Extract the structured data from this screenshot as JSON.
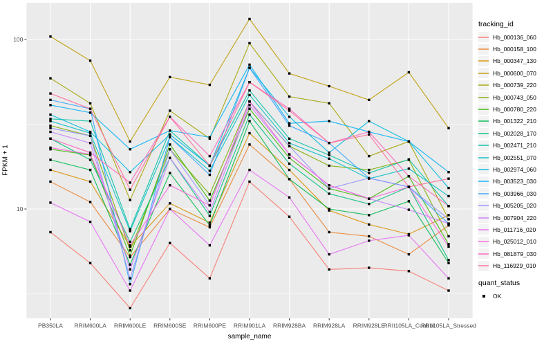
{
  "chart_data": {
    "type": "line",
    "title": "",
    "xlabel": "sample_name",
    "ylabel": "FPKM + 1",
    "y_scale": "log10",
    "y_ticks": [
      10,
      100
    ],
    "y_minor_gridlines": [
      3.162,
      31.623
    ],
    "ylim": [
      2.2,
      165
    ],
    "grid": "white-on-gray-panel",
    "legend_position": "right",
    "legend_title": "tracking_id",
    "point_marker": {
      "shape": "square",
      "color": "#000000",
      "meaning": "quant_status OK"
    },
    "quant_status": {
      "title": "quant_status",
      "items": [
        {
          "label": "OK",
          "marker": "black-square"
        }
      ]
    },
    "categories": [
      "PB350LA",
      "RRIM600LA",
      "RRIM600LE",
      "RRIM600SE",
      "RRIM600PE",
      "RRIM901LA",
      "RRIM928BA",
      "RRIM928LA",
      "RRIM928LE",
      "RRII105LA_Control",
      "RRII105LA_Stressed"
    ],
    "series": [
      {
        "name": "Hb_000136_060",
        "color": "#F8766D",
        "values": [
          7.3,
          4.8,
          2.6,
          6.3,
          3.9,
          14.5,
          9.0,
          4.4,
          4.5,
          4.3,
          3.3
        ]
      },
      {
        "name": "Hb_000158_100",
        "color": "#EA8331",
        "values": [
          14.5,
          11.0,
          5.2,
          10.0,
          7.8,
          24.0,
          15.0,
          7.3,
          6.9,
          5.4,
          8.0
        ]
      },
      {
        "name": "Hb_000347_130",
        "color": "#D89000",
        "values": [
          17.0,
          14.5,
          6.0,
          10.8,
          8.3,
          28.0,
          17.0,
          9.8,
          8.1,
          7.1,
          9.2
        ]
      },
      {
        "name": "Hb_000600_070",
        "color": "#C09B00",
        "values": [
          104,
          75,
          25,
          60,
          54,
          132,
          63,
          53,
          44,
          64,
          30
        ]
      },
      {
        "name": "Hb_000739_220",
        "color": "#A3A500",
        "values": [
          59,
          42,
          11.3,
          38,
          26,
          95,
          46,
          42,
          20.5,
          25,
          8.7
        ]
      },
      {
        "name": "Hb_000743_050",
        "color": "#7CAE00",
        "values": [
          31,
          27,
          5.7,
          22.5,
          12.2,
          43,
          23.5,
          18,
          17,
          19.5,
          6.9
        ]
      },
      {
        "name": "Hb_000780_220",
        "color": "#39B600",
        "values": [
          22.5,
          20.8,
          5.3,
          24,
          11.2,
          39,
          20,
          13.2,
          11.5,
          15.6,
          6.2
        ]
      },
      {
        "name": "Hb_001322_210",
        "color": "#00BB4E",
        "values": [
          19.5,
          17.0,
          4.7,
          16.3,
          8.0,
          33,
          15.0,
          10.0,
          9.2,
          11.1,
          4.8
        ]
      },
      {
        "name": "Hb_002028_170",
        "color": "#00BF7D",
        "values": [
          26,
          19.5,
          6.4,
          20,
          9.1,
          36,
          18.5,
          12.3,
          10.7,
          13.5,
          5.0
        ]
      },
      {
        "name": "Hb_002471_210",
        "color": "#00C1A3",
        "values": [
          34,
          33,
          7.6,
          29,
          18,
          50,
          26,
          20.8,
          16.3,
          19.6,
          10.4
        ]
      },
      {
        "name": "Hb_002551_070",
        "color": "#00BFC4",
        "values": [
          33,
          28,
          7.4,
          26.5,
          16.8,
          47,
          24.5,
          19.8,
          15.1,
          17.3,
          11.9
        ]
      },
      {
        "name": "Hb_002974_060",
        "color": "#00BAE0",
        "values": [
          36,
          28.5,
          16.5,
          27.5,
          18,
          68,
          35,
          21.5,
          33,
          25,
          13.3
        ]
      },
      {
        "name": "Hb_003523_030",
        "color": "#00B0F6",
        "values": [
          41,
          37,
          22.5,
          29,
          26.5,
          71,
          32,
          33,
          28.5,
          25,
          16.5
        ]
      },
      {
        "name": "Hb_003966_030",
        "color": "#35A2FF",
        "values": [
          44,
          39,
          3.6,
          26.5,
          15.9,
          68,
          31,
          24.5,
          15.2,
          13.5,
          8.2
        ]
      },
      {
        "name": "Hb_005205_020",
        "color": "#9590FF",
        "values": [
          30,
          27,
          3.9,
          22.5,
          10.5,
          43,
          23.5,
          13.2,
          15.2,
          13.5,
          8.7
        ]
      },
      {
        "name": "Hb_007904_220",
        "color": "#C77CFF",
        "values": [
          28.5,
          24.5,
          4.4,
          20,
          9.6,
          41,
          21,
          13.8,
          11.5,
          9.9,
          8.2
        ]
      },
      {
        "name": "Hb_011716_020",
        "color": "#E76BF3",
        "values": [
          10.9,
          8.4,
          3.3,
          10.0,
          6.1,
          17.0,
          11.7,
          5.4,
          6.5,
          7.0,
          3.9
        ]
      },
      {
        "name": "Hb_025012_010",
        "color": "#FA62DB",
        "values": [
          23,
          21,
          6.1,
          13.8,
          10.5,
          43,
          21,
          13.8,
          11.5,
          13.5,
          6.0
        ]
      },
      {
        "name": "Hb_081879_030",
        "color": "#FF62BC",
        "values": [
          26,
          21.5,
          14.3,
          35,
          20.5,
          56,
          39,
          24.5,
          28.5,
          15.6,
          10.4
        ]
      },
      {
        "name": "Hb_116929_010",
        "color": "#FF6A98",
        "values": [
          48,
          39,
          13.0,
          35,
          18,
          56,
          38,
          24.5,
          27.5,
          13.5,
          15.1
        ]
      }
    ]
  },
  "colors": {
    "panel_bg": "#EBEBEB",
    "gridline": "#FFFFFF",
    "axis_text": "#4D4D4D",
    "axis_title": "#000000",
    "tick_mark": "#333333",
    "legend_key_bg": "#F2F2F2",
    "point": "#000000",
    "background": "#FFFFFF"
  }
}
